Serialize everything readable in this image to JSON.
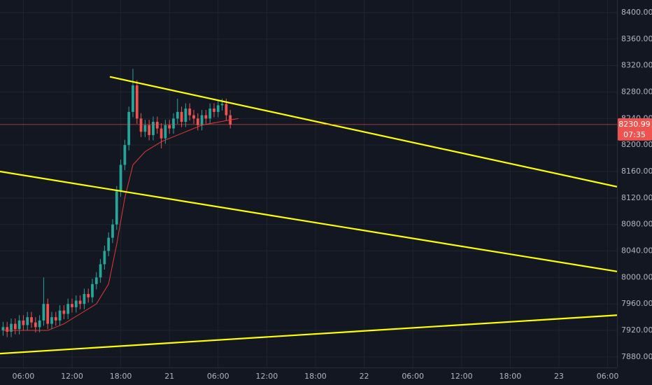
{
  "chart_data": {
    "type": "candlestick",
    "background": "#131722",
    "grid": true,
    "xlim": [
      3.12,
      79.16
    ],
    "xticks": [
      {
        "value": 6,
        "label": "06:00"
      },
      {
        "value": 12,
        "label": "12:00"
      },
      {
        "value": 18,
        "label": "18:00"
      },
      {
        "value": 24,
        "label": "21"
      },
      {
        "value": 30,
        "label": "06:00"
      },
      {
        "value": 36,
        "label": "12:00"
      },
      {
        "value": 42,
        "label": "18:00"
      },
      {
        "value": 48,
        "label": "22"
      },
      {
        "value": 54,
        "label": "06:00"
      },
      {
        "value": 60,
        "label": "12:00"
      },
      {
        "value": 66,
        "label": "18:00"
      },
      {
        "value": 72,
        "label": "23"
      },
      {
        "value": 78,
        "label": "06:00"
      }
    ],
    "ylim": [
      7864,
      8419
    ],
    "yticks": [
      {
        "value": 7880,
        "label": "7880.00"
      },
      {
        "value": 7920,
        "label": "7920.00"
      },
      {
        "value": 7960,
        "label": "7960.00"
      },
      {
        "value": 8000,
        "label": "8000.00"
      },
      {
        "value": 8040,
        "label": "8040.00"
      },
      {
        "value": 8080,
        "label": "8080.00"
      },
      {
        "value": 8120,
        "label": "8120.00"
      },
      {
        "value": 8160,
        "label": "8160.00"
      },
      {
        "value": 8200,
        "label": "8200.00"
      },
      {
        "value": 8240,
        "label": "8240.00"
      },
      {
        "value": 8280,
        "label": "8280.00"
      },
      {
        "value": 8320,
        "label": "8320.00"
      },
      {
        "value": 8360,
        "label": "8360.00"
      },
      {
        "value": 8400,
        "label": "8400.00"
      }
    ],
    "up_color": "#26a69a",
    "down_color": "#ef5350",
    "x": [
      3.5,
      4,
      4.5,
      5,
      5.5,
      6,
      6.5,
      7,
      7.5,
      8,
      8.5,
      9,
      9.5,
      10,
      10.5,
      11,
      11.5,
      12,
      12.5,
      13,
      13.5,
      14,
      14.5,
      15,
      15.5,
      16,
      16.5,
      17,
      17.5,
      18,
      18.5,
      19,
      19.5,
      20,
      20.5,
      21,
      21.5,
      22,
      22.5,
      23,
      23.5,
      24,
      24.5,
      25,
      25.5,
      26,
      26.5,
      27,
      27.5,
      28,
      28.5,
      29,
      29.5,
      30,
      30.5,
      31,
      31.5
    ],
    "open": [
      7920,
      7925,
      7918,
      7930,
      7922,
      7935,
      7928,
      7940,
      7932,
      7925,
      7935,
      7960,
      7930,
      7940,
      7935,
      7950,
      7945,
      7960,
      7955,
      7965,
      7960,
      7975,
      7970,
      7990,
      8000,
      8020,
      8040,
      8060,
      8080,
      8130,
      8170,
      8200,
      8250,
      8290,
      8240,
      8220,
      8230,
      8215,
      8235,
      8225,
      8210,
      8230,
      8225,
      8240,
      8250,
      8235,
      8255,
      8245,
      8240,
      8230,
      8245,
      8240,
      8255,
      8250,
      8260,
      8262,
      8245
    ],
    "high": [
      7933,
      7933,
      7938,
      7938,
      7943,
      7943,
      7948,
      7948,
      7940,
      7943,
      8000,
      7968,
      7948,
      7948,
      7958,
      7958,
      7968,
      7968,
      7973,
      7973,
      7983,
      7983,
      7998,
      8008,
      8028,
      8048,
      8068,
      8088,
      8138,
      8178,
      8208,
      8258,
      8315,
      8298,
      8248,
      8238,
      8238,
      8243,
      8243,
      8233,
      8238,
      8238,
      8248,
      8270,
      8258,
      8263,
      8263,
      8253,
      8248,
      8253,
      8253,
      8263,
      8263,
      8268,
      8270,
      8270,
      8253
    ],
    "low": [
      7912,
      7910,
      7910,
      7914,
      7914,
      7920,
      7920,
      7924,
      7917,
      7917,
      7927,
      7922,
      7922,
      7927,
      7927,
      7937,
      7937,
      7947,
      7947,
      7952,
      7952,
      7962,
      7962,
      7982,
      7992,
      8012,
      8032,
      8052,
      8072,
      8122,
      8162,
      8192,
      8242,
      8232,
      8212,
      8212,
      8207,
      8207,
      8217,
      8195,
      8202,
      8217,
      8217,
      8232,
      8227,
      8227,
      8237,
      8232,
      8222,
      8222,
      8232,
      8232,
      8242,
      8242,
      8252,
      8237,
      8225
    ],
    "close": [
      7925,
      7918,
      7930,
      7922,
      7935,
      7928,
      7940,
      7932,
      7925,
      7935,
      7960,
      7930,
      7940,
      7935,
      7950,
      7945,
      7960,
      7955,
      7965,
      7960,
      7975,
      7970,
      7990,
      8000,
      8020,
      8040,
      8060,
      8080,
      8130,
      8170,
      8200,
      8250,
      8290,
      8240,
      8220,
      8230,
      8215,
      8235,
      8225,
      8210,
      8230,
      8225,
      8240,
      8250,
      8235,
      8255,
      8245,
      8240,
      8230,
      8245,
      8240,
      8255,
      8250,
      8260,
      8262,
      8245,
      8231
    ],
    "moving_average": {
      "color": "#e53935",
      "x": [
        3.5,
        9,
        11,
        13,
        15,
        16.5,
        17.5,
        18.5,
        19.5,
        21,
        23,
        25,
        28,
        31.5,
        32.5
      ],
      "values": [
        7920,
        7920,
        7930,
        7945,
        7960,
        7990,
        8050,
        8120,
        8170,
        8190,
        8205,
        8215,
        8230,
        8238,
        8240
      ]
    },
    "trend_lines": [
      {
        "color": "#ffff00",
        "x": [
          16.66,
          79.16
        ],
        "y": [
          8303,
          8137
        ]
      },
      {
        "color": "#ffff00",
        "x": [
          3.12,
          79.16
        ],
        "y": [
          8160,
          8009
        ]
      },
      {
        "color": "#ffff00",
        "x": [
          3.12,
          79.16
        ],
        "y": [
          7885,
          7943
        ]
      }
    ],
    "last_price": 8230.99,
    "countdown": "07:35",
    "last_price_color": "#ef5350"
  }
}
